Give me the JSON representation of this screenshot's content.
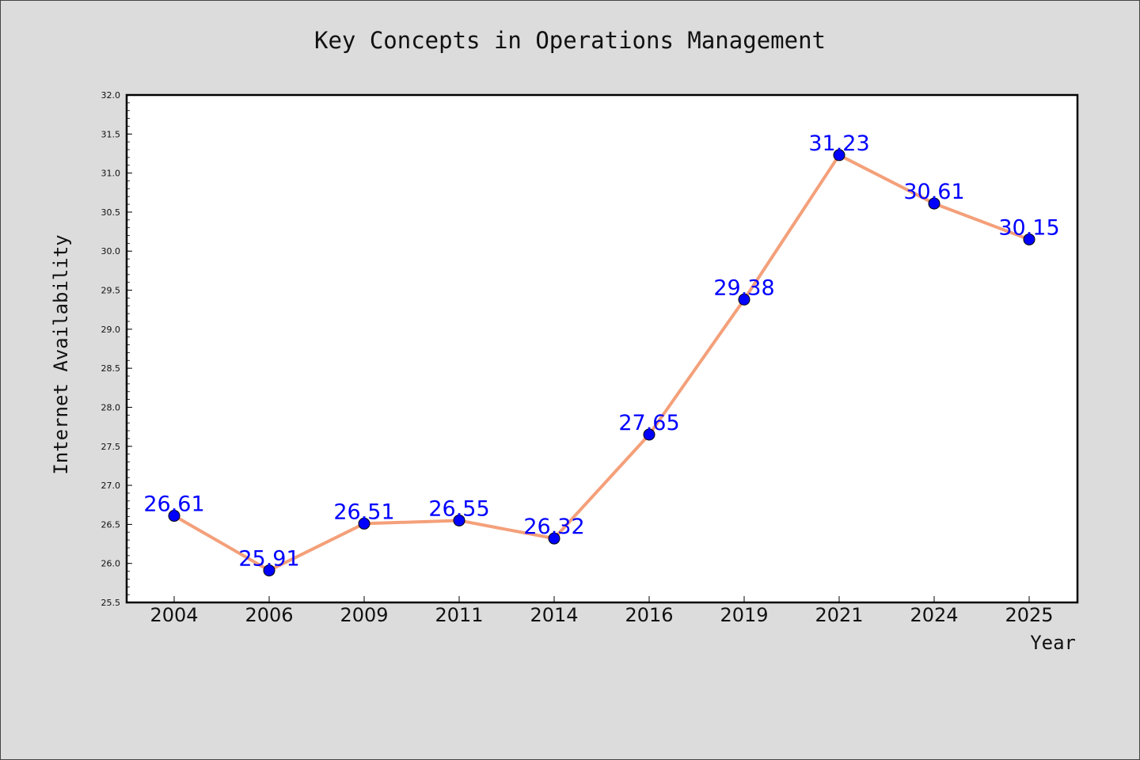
{
  "chart_data": {
    "type": "line",
    "title": "Key Concepts in Operations Management",
    "xlabel": "Year",
    "ylabel": "Internet Availability",
    "categories": [
      "2004",
      "2006",
      "2009",
      "2011",
      "2014",
      "2016",
      "2019",
      "2021",
      "2024",
      "2025"
    ],
    "series": [
      {
        "values": [
          26.61,
          25.91,
          26.51,
          26.55,
          26.32,
          27.65,
          29.38,
          31.23,
          30.61,
          30.15
        ],
        "labels": [
          "26.61",
          "25.91",
          "26.51",
          "26.55",
          "26.32",
          "27.65",
          "29.38",
          "31.23",
          "30.61",
          "30.15"
        ],
        "line_color": "#f4a07a",
        "marker_color": "#0000ff",
        "label_color": "#0000ff"
      }
    ],
    "ylim": [
      25.5,
      32.0
    ],
    "yticks": [
      "25.5",
      "26.0",
      "26.5",
      "27.0",
      "27.5",
      "28.0",
      "28.5",
      "29.0",
      "29.5",
      "30.0",
      "30.5",
      "31.0",
      "31.5",
      "32.0"
    ],
    "grid": false,
    "background": "#dcdcdc",
    "plot_background": "#ffffff"
  }
}
